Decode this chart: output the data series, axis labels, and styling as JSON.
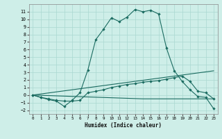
{
  "xlabel": "Humidex (Indice chaleur)",
  "xlim": [
    -0.5,
    23.5
  ],
  "ylim": [
    -2.5,
    12.0
  ],
  "yticks": [
    -2,
    -1,
    0,
    1,
    2,
    3,
    4,
    5,
    6,
    7,
    8,
    9,
    10,
    11
  ],
  "xticks": [
    0,
    1,
    2,
    3,
    4,
    5,
    6,
    7,
    8,
    9,
    10,
    11,
    12,
    13,
    14,
    15,
    16,
    17,
    18,
    19,
    20,
    21,
    22,
    23
  ],
  "bg_color": "#ceeee8",
  "grid_color": "#aad8d0",
  "line_color": "#1a6b60",
  "series1_x": [
    0,
    1,
    2,
    3,
    4,
    5,
    6,
    7,
    8,
    9,
    10,
    11,
    12,
    13,
    14,
    15,
    16,
    17,
    18,
    19,
    20,
    21,
    22,
    23
  ],
  "series1_y": [
    0.0,
    -0.3,
    -0.6,
    -0.8,
    -1.5,
    -0.7,
    0.3,
    3.3,
    7.3,
    8.7,
    10.2,
    9.7,
    10.3,
    11.3,
    11.0,
    11.2,
    10.7,
    6.2,
    3.2,
    1.8,
    0.7,
    -0.2,
    -0.3,
    -1.8
  ],
  "series2_x": [
    0,
    1,
    2,
    3,
    4,
    5,
    6,
    7,
    8,
    9,
    10,
    11,
    12,
    13,
    14,
    15,
    16,
    17,
    18,
    19,
    20,
    21,
    22,
    23
  ],
  "series2_y": [
    0.0,
    -0.3,
    -0.5,
    -0.7,
    -0.8,
    -0.8,
    -0.7,
    0.3,
    0.5,
    0.7,
    1.0,
    1.2,
    1.4,
    1.5,
    1.7,
    1.8,
    1.9,
    2.1,
    2.3,
    2.5,
    1.8,
    0.5,
    0.3,
    -0.5
  ],
  "series3_x": [
    0,
    23
  ],
  "series3_y": [
    0.0,
    3.2
  ],
  "series4_x": [
    0,
    14,
    23
  ],
  "series4_y": [
    0.0,
    -0.5,
    -0.5
  ]
}
